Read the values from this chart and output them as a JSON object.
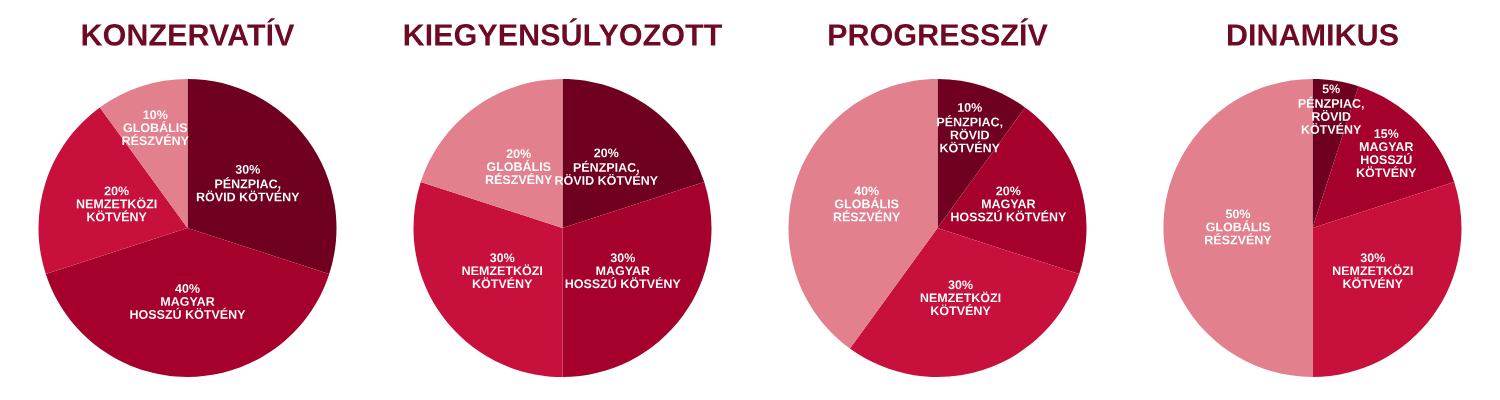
{
  "chart_data": [
    {
      "type": "pie",
      "title": "KONZERVATÍV",
      "categories": [
        "PÉNZPIAC,\nRÖVID KÖTVÉNY",
        "MAGYAR\nHOSSZÚ KÖTVÉNY",
        "NEMZETKÖZI\nKÖTVÉNY",
        "GLOBÁLIS\nRÉSZVÉNY"
      ],
      "values": [
        30,
        40,
        20,
        10
      ],
      "value_labels": [
        "30%",
        "40%",
        "20%",
        "10%"
      ],
      "colors": [
        "#700020",
        "#a6002c",
        "#c8103c",
        "#e2808e"
      ]
    },
    {
      "type": "pie",
      "title": "KIEGYENSÚLYOZOTT",
      "categories": [
        "PÉNZPIAC,\nRÖVID KÖTVÉNY",
        "MAGYAR\nHOSSZÚ KÖTVÉNY",
        "NEMZETKÖZI\nKÖTVÉNY",
        "GLOBÁLIS\nRÉSZVÉNY"
      ],
      "values": [
        20,
        30,
        30,
        20
      ],
      "value_labels": [
        "20%",
        "30%",
        "30%",
        "20%"
      ],
      "colors": [
        "#700020",
        "#a6002c",
        "#c8103c",
        "#e2808e"
      ]
    },
    {
      "type": "pie",
      "title": "PROGRESSZÍV",
      "categories": [
        "PÉNZPIAC,\nRÖVID\nKÖTVÉNY",
        "MAGYAR\nHOSSZÚ KÖTVÉNY",
        "NEMZETKÖZI\nKÖTVÉNY",
        "GLOBÁLIS\nRÉSZVÉNY"
      ],
      "values": [
        10,
        20,
        30,
        40
      ],
      "value_labels": [
        "10%",
        "20%",
        "30%",
        "40%"
      ],
      "colors": [
        "#700020",
        "#a6002c",
        "#c8103c",
        "#e2808e"
      ]
    },
    {
      "type": "pie",
      "title": "DINAMIKUS",
      "categories": [
        "PÉNZPIAC,\nRÖVID\nKÖTVÉNY",
        "MAGYAR\nHOSSZÚ\nKÖTVÉNY",
        "NEMZETKÖZI\nKÖTVÉNY",
        "GLOBÁLIS\nRÉSZVÉNY"
      ],
      "values": [
        5,
        15,
        30,
        50
      ],
      "value_labels": [
        "5%",
        "15%",
        "30%",
        "50%"
      ],
      "colors": [
        "#700020",
        "#a6002c",
        "#c8103c",
        "#e2808e"
      ]
    }
  ]
}
